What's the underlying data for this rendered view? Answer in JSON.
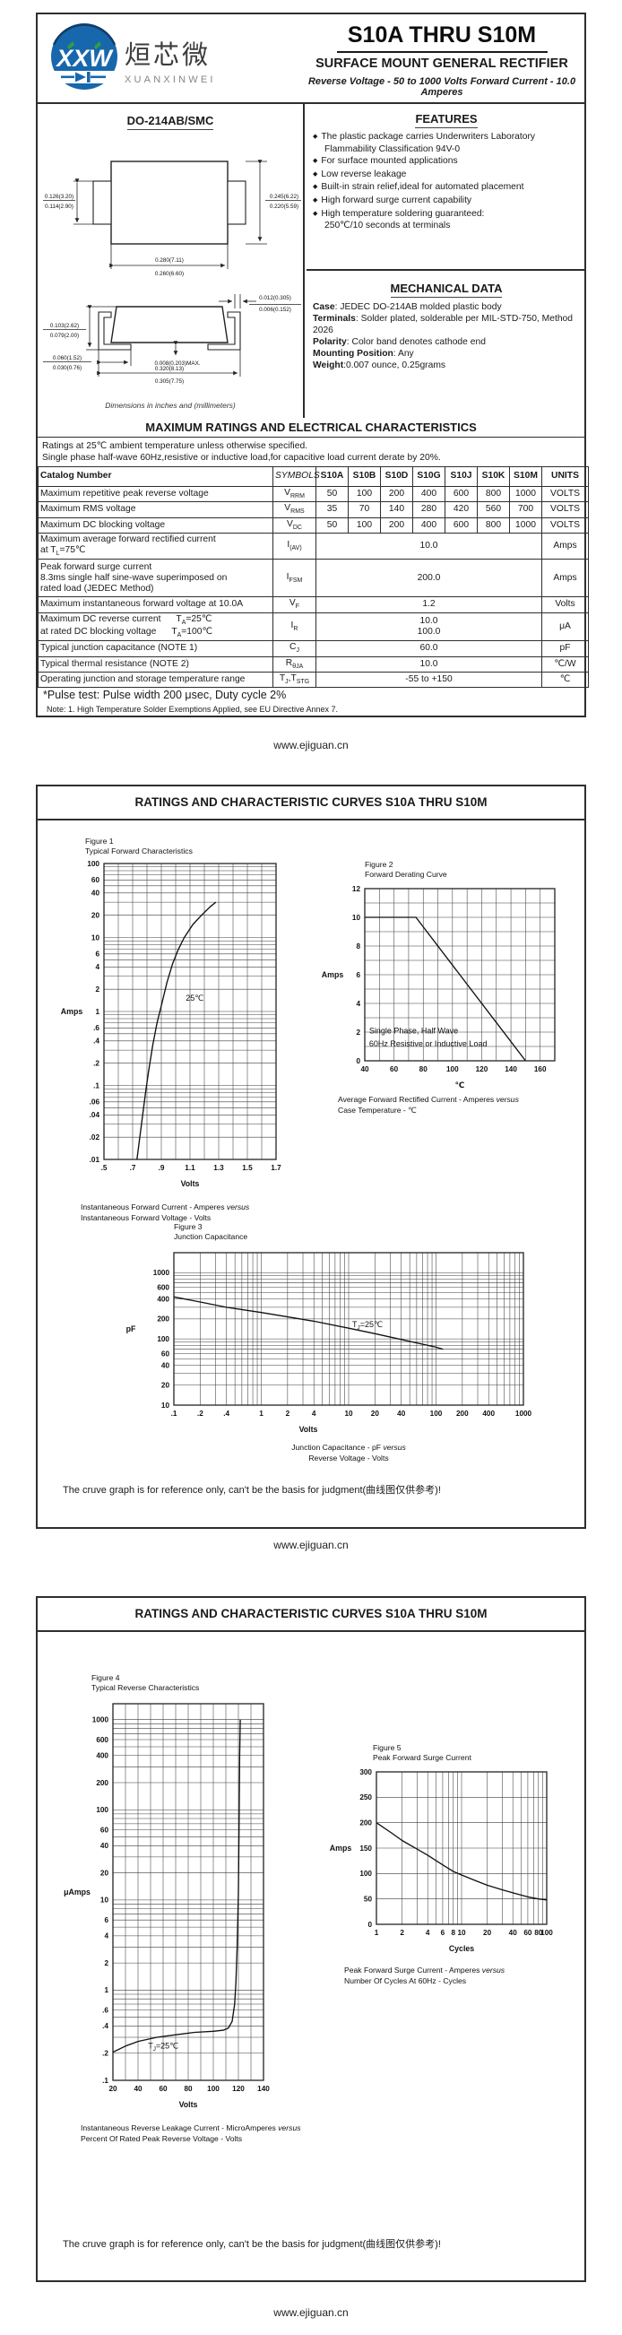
{
  "document": {
    "brand": {
      "logo_text": "XXW",
      "logo_cn": "烜芯微",
      "logo_en": "XUANXINWEI"
    },
    "part_range": "S10A THRU S10M",
    "doc_type": "SURFACE MOUNT GENERAL RECTIFIER",
    "tagline": "Reverse Voltage - 50 to 1000 Volts    Forward Current - 10.0 Amperes",
    "curves_title": "RATINGS AND CHARACTERISTIC CURVES S10A THRU S10M",
    "ref_note": "The cruve graph is for reference only, can't be the basis for judgment(曲线图仅供参考)!",
    "footer_url": "www.ejiguan.cn"
  },
  "package": {
    "name": "DO-214AB/SMC",
    "dims_note": "Dimensions in inches and (millimeters)",
    "dims": {
      "tab_height": [
        "0.126(3.20)",
        "0.114(2.90)"
      ],
      "body_height": [
        "0.245(6.22)",
        "0.220(5.59)"
      ],
      "body_width": [
        "0.280(7.11)",
        "0.260(6.60)"
      ],
      "terminal_thickness": [
        "0.012(0.305)",
        "0.006(0.152)"
      ],
      "profile_height": [
        "0.103(2.62)",
        "0.079(2.00)"
      ],
      "terminal_length": [
        "0.060(1.52)",
        "0.030(0.76)"
      ],
      "standoff": "0.008(0.203)MAX.",
      "overall_width": [
        "0.320(8.13)",
        "0.305(7.75)"
      ]
    }
  },
  "features": {
    "title": "FEATURES",
    "items": [
      "The plastic package carries Underwriters Laboratory Flammability Classification 94V-0",
      "For surface mounted applications",
      "Low reverse leakage",
      "Built-in strain relief,ideal for automated placement",
      "High forward surge current capability",
      "High temperature soldering guaranteed:\n250℃/10 seconds at terminals"
    ]
  },
  "mechanical": {
    "title": "MECHANICAL DATA",
    "lines": [
      {
        "b": "Case",
        "t": ": JEDEC DO-214AB molded plastic body"
      },
      {
        "b": "Terminals",
        "t": ": Solder plated, solderable per MIL-STD-750, Method 2026"
      },
      {
        "b": "Polarity",
        "t": ": Color band denotes cathode end"
      },
      {
        "b": "Mounting Position",
        "t": ": Any"
      },
      {
        "b": "Weight",
        "t": ":0.007 ounce, 0.25grams"
      }
    ]
  },
  "ratings": {
    "title": "MAXIMUM RATINGS AND ELECTRICAL CHARACTERISTICS",
    "note1": "Ratings at 25℃ ambient temperature unless otherwise specified.",
    "note2": "Single phase half-wave 60Hz,resistive or inductive load,for capacitive load current derate by 20%.",
    "pulse_note": "*Pulse test: Pulse width 200 μsec, Duty cycle 2%",
    "eu_note": "Note:    1.  High Temperature Solder Exemptions Applied, see EU Directive Annex 7.",
    "table": {
      "catalog_header": "Catalog  Number",
      "symbols_header": "SYMBOLS",
      "part_numbers": [
        "S10A",
        "S10B",
        "S10D",
        "S10G",
        "S10J",
        "S10K",
        "S10M"
      ],
      "units_header": "UNITS",
      "rows": [
        {
          "label": "Maximum repetitive peak reverse voltage",
          "symbol": "V_{RRM}",
          "values": [
            "50",
            "100",
            "200",
            "400",
            "600",
            "800",
            "1000"
          ],
          "units": "VOLTS"
        },
        {
          "label": "Maximum RMS voltage",
          "symbol": "V_{RMS}",
          "values": [
            "35",
            "70",
            "140",
            "280",
            "420",
            "560",
            "700"
          ],
          "units": "VOLTS"
        },
        {
          "label": "Maximum DC blocking voltage",
          "symbol": "V_{DC}",
          "values": [
            "50",
            "100",
            "200",
            "400",
            "600",
            "800",
            "1000"
          ],
          "units": "VOLTS"
        },
        {
          "label": "Maximum average forward rectified current\nat T_{L}=75℃",
          "symbol": "I_{(AV)}",
          "span": "10.0",
          "units": "Amps"
        },
        {
          "label": "Peak forward surge current\n8.3ms single half sine-wave superimposed on\nrated load (JEDEC Method)",
          "symbol": "I_{FSM}",
          "span": "200.0",
          "units": "Amps"
        },
        {
          "label": "Maximum instantaneous forward voltage at 10.0A",
          "symbol": "V_{F}",
          "span": "1.2",
          "units": "Volts"
        },
        {
          "label": "Maximum DC reverse current      T_{A}=25℃\nat rated DC blocking voltage      T_{A}=100℃",
          "symbol": "I_{R}",
          "span": "10.0\n100.0",
          "units": "μA"
        },
        {
          "label": "Typical junction capacitance (NOTE 1)",
          "symbol": "C_{J}",
          "span": "60.0",
          "units": "pF"
        },
        {
          "label": "Typical thermal resistance (NOTE 2)",
          "symbol": "R_{θJA}",
          "span": "10.0",
          "units": "℃/W"
        },
        {
          "label": "Operating junction and storage temperature range",
          "symbol": "T_{J},T_{STG}",
          "span": "-55 to +150",
          "units": "℃"
        }
      ]
    }
  },
  "chart_data": [
    {
      "id": "figure1",
      "type": "line",
      "figure_label": "Figure 1",
      "title": "Typical Forward Characteristics",
      "xlabel": "Volts",
      "ylabel": "Amps",
      "x": {
        "scale": "linear",
        "min": 0.5,
        "max": 1.7,
        "grid_step": 0.1,
        "ticks": [
          [
            0.5,
            ".5"
          ],
          [
            0.7,
            ".7"
          ],
          [
            0.9,
            ".9"
          ],
          [
            1.1,
            "1.1"
          ],
          [
            1.3,
            "1.3"
          ],
          [
            1.5,
            "1.5"
          ],
          [
            1.7,
            "1.7"
          ]
        ]
      },
      "y": {
        "scale": "log",
        "min": 0.01,
        "max": 100,
        "ticks": [
          [
            100,
            "100"
          ],
          [
            60,
            "60"
          ],
          [
            40,
            "40"
          ],
          [
            20,
            "20"
          ],
          [
            10,
            "10"
          ],
          [
            6,
            "6"
          ],
          [
            4,
            "4"
          ],
          [
            2,
            "2"
          ],
          [
            1,
            "1"
          ],
          [
            0.6,
            ".6"
          ],
          [
            0.4,
            ".4"
          ],
          [
            0.2,
            ".2"
          ],
          [
            0.1,
            ".1"
          ],
          [
            0.06,
            ".06"
          ],
          [
            0.04,
            ".04"
          ],
          [
            0.02,
            ".02"
          ],
          [
            0.01,
            ".01"
          ]
        ]
      },
      "series": [
        {
          "name": "25℃",
          "points": [
            [
              0.73,
              0.01
            ],
            [
              0.75,
              0.02
            ],
            [
              0.77,
              0.04
            ],
            [
              0.79,
              0.08
            ],
            [
              0.81,
              0.15
            ],
            [
              0.84,
              0.35
            ],
            [
              0.87,
              0.7
            ],
            [
              0.9,
              1.2
            ],
            [
              0.94,
              2.5
            ],
            [
              0.98,
              4.5
            ],
            [
              1.02,
              7
            ],
            [
              1.06,
              10
            ],
            [
              1.12,
              15
            ],
            [
              1.18,
              20
            ],
            [
              1.24,
              26
            ],
            [
              1.28,
              30
            ]
          ]
        }
      ],
      "annotations": [
        {
          "text": "25℃",
          "at": [
            1.07,
            1.4
          ]
        }
      ],
      "caption": [
        "Instantaneous Forward Current - Amperes versus",
        "Instantaneous Forward Voltage - Volts"
      ]
    },
    {
      "id": "figure2",
      "type": "line",
      "figure_label": "Figure 2",
      "title": "Forward Derating Curve",
      "xlabel": "℃",
      "ylabel": "Amps",
      "x": {
        "scale": "linear",
        "min": 40,
        "max": 170,
        "grid_step": 10,
        "ticks": [
          [
            40,
            "40"
          ],
          [
            60,
            "60"
          ],
          [
            80,
            "80"
          ],
          [
            100,
            "100"
          ],
          [
            120,
            "120"
          ],
          [
            140,
            "140"
          ],
          [
            160,
            "160"
          ]
        ]
      },
      "y": {
        "scale": "linear",
        "min": 0,
        "max": 12,
        "grid_step": 1,
        "ticks": [
          [
            0,
            "0"
          ],
          [
            2,
            "2"
          ],
          [
            4,
            "4"
          ],
          [
            6,
            "6"
          ],
          [
            8,
            "8"
          ],
          [
            10,
            "10"
          ],
          [
            12,
            "12"
          ]
        ]
      },
      "series": [
        {
          "name": "",
          "points": [
            [
              40,
              10
            ],
            [
              75,
              10
            ],
            [
              150,
              0
            ]
          ]
        }
      ],
      "annotations": [
        {
          "text": "Single Phase, Half Wave",
          "at": [
            43,
            1.9
          ]
        },
        {
          "text": "60Hz Resistive or Inductive Load",
          "at": [
            43,
            1.0
          ]
        }
      ],
      "caption": [
        "Average Forward Rectified Current  -  Amperes versus",
        "Case Temperature - ℃"
      ]
    },
    {
      "id": "figure3",
      "type": "line",
      "figure_label": "Figure 3",
      "title": "Junction Capacitance",
      "xlabel": "Volts",
      "ylabel": "pF",
      "x": {
        "scale": "log",
        "min": 0.1,
        "max": 1000,
        "ticks": [
          [
            0.1,
            ".1"
          ],
          [
            0.2,
            ".2"
          ],
          [
            0.4,
            ".4"
          ],
          [
            1,
            "1"
          ],
          [
            2,
            "2"
          ],
          [
            4,
            "4"
          ],
          [
            10,
            "10"
          ],
          [
            20,
            "20"
          ],
          [
            40,
            "40"
          ],
          [
            100,
            "100"
          ],
          [
            200,
            "200"
          ],
          [
            400,
            "400"
          ],
          [
            1000,
            "1000"
          ]
        ]
      },
      "y": {
        "scale": "log",
        "min": 10,
        "max": 2000,
        "ticks": [
          [
            10,
            "10"
          ],
          [
            20,
            "20"
          ],
          [
            40,
            "40"
          ],
          [
            60,
            "60"
          ],
          [
            100,
            "100"
          ],
          [
            200,
            "200"
          ],
          [
            400,
            "400"
          ],
          [
            600,
            "600"
          ],
          [
            1000,
            "1000"
          ]
        ]
      },
      "series": [
        {
          "name": "T_{J}=25℃",
          "points": [
            [
              0.1,
              430
            ],
            [
              0.2,
              360
            ],
            [
              0.4,
              300
            ],
            [
              1,
              250
            ],
            [
              2,
              215
            ],
            [
              4,
              185
            ],
            [
              10,
              145
            ],
            [
              20,
              120
            ],
            [
              40,
              98
            ],
            [
              100,
              75
            ],
            [
              120,
              70
            ]
          ]
        }
      ],
      "annotations": [
        {
          "text": "T_{J}=25℃",
          "at": [
            11,
            150
          ]
        }
      ],
      "caption": [
        "Junction Capacitance - pF versus",
        "Reverse Voltage - Volts"
      ]
    },
    {
      "id": "figure4",
      "type": "line",
      "figure_label": "Figure 4",
      "title": "Typical Reverse Characteristics",
      "xlabel": "Volts",
      "ylabel": "μAmps",
      "x": {
        "scale": "linear",
        "min": 20,
        "max": 140,
        "grid_step": 10,
        "ticks": [
          [
            20,
            "20"
          ],
          [
            40,
            "40"
          ],
          [
            60,
            "60"
          ],
          [
            80,
            "80"
          ],
          [
            100,
            "100"
          ],
          [
            120,
            "120"
          ],
          [
            140,
            "140"
          ]
        ]
      },
      "y": {
        "scale": "log",
        "min": 0.1,
        "max": 1500,
        "ticks": [
          [
            1000,
            "1000"
          ],
          [
            600,
            "600"
          ],
          [
            400,
            "400"
          ],
          [
            200,
            "200"
          ],
          [
            100,
            "100"
          ],
          [
            60,
            "60"
          ],
          [
            40,
            "40"
          ],
          [
            20,
            "20"
          ],
          [
            10,
            "10"
          ],
          [
            6,
            "6"
          ],
          [
            4,
            "4"
          ],
          [
            2,
            "2"
          ],
          [
            1,
            "1"
          ],
          [
            0.6,
            ".6"
          ],
          [
            0.4,
            ".4"
          ],
          [
            0.2,
            ".2"
          ],
          [
            0.1,
            ".1"
          ]
        ]
      },
      "series": [
        {
          "name": "T_{J}=25℃",
          "points": [
            [
              20,
              0.205
            ],
            [
              30,
              0.24
            ],
            [
              40,
              0.27
            ],
            [
              55,
              0.3
            ],
            [
              70,
              0.32
            ],
            [
              85,
              0.34
            ],
            [
              100,
              0.35
            ],
            [
              108,
              0.36
            ],
            [
              112,
              0.38
            ],
            [
              115,
              0.45
            ],
            [
              117,
              0.7
            ],
            [
              118,
              1.2
            ],
            [
              119,
              3
            ],
            [
              120,
              12
            ],
            [
              120.5,
              60
            ],
            [
              121,
              400
            ],
            [
              121.5,
              1000
            ]
          ]
        }
      ],
      "annotations": [
        {
          "text": "T_{J}=25℃",
          "at": [
            48,
            0.225
          ]
        }
      ],
      "caption": [
        "Instantaneous Reverse Leakage Current - MicroAmperes versus",
        "Percent Of Rated Peak Reverse Voltage - Volts"
      ]
    },
    {
      "id": "figure5",
      "type": "line",
      "figure_label": "Figure 5",
      "title": "Peak Forward Surge Current",
      "xlabel": "Cycles",
      "ylabel": "Amps",
      "x": {
        "scale": "log",
        "min": 1,
        "max": 100,
        "ticks": [
          [
            1,
            "1"
          ],
          [
            2,
            "2"
          ],
          [
            4,
            "4"
          ],
          [
            6,
            "6"
          ],
          [
            8,
            "8"
          ],
          [
            10,
            "10"
          ],
          [
            20,
            "20"
          ],
          [
            40,
            "40"
          ],
          [
            60,
            "60"
          ],
          [
            80,
            "80"
          ],
          [
            100,
            "100"
          ]
        ]
      },
      "y": {
        "scale": "linear",
        "min": 0,
        "max": 300,
        "grid_step": 50,
        "ticks": [
          [
            0,
            "0"
          ],
          [
            50,
            "50"
          ],
          [
            100,
            "100"
          ],
          [
            150,
            "150"
          ],
          [
            200,
            "200"
          ],
          [
            250,
            "250"
          ],
          [
            300,
            "300"
          ]
        ]
      },
      "series": [
        {
          "name": "",
          "points": [
            [
              1,
              200
            ],
            [
              1.5,
              180
            ],
            [
              2,
              165
            ],
            [
              3,
              148
            ],
            [
              4,
              136
            ],
            [
              6,
              117
            ],
            [
              8,
              104
            ],
            [
              10,
              97
            ],
            [
              15,
              85
            ],
            [
              20,
              77
            ],
            [
              30,
              68
            ],
            [
              40,
              62
            ],
            [
              60,
              54
            ],
            [
              80,
              50
            ],
            [
              100,
              48
            ]
          ]
        }
      ],
      "annotations": [],
      "caption": [
        "Peak Forward Surge Current - Amperes versus",
        "Number Of Cycles At 60Hz - Cycles"
      ]
    }
  ]
}
